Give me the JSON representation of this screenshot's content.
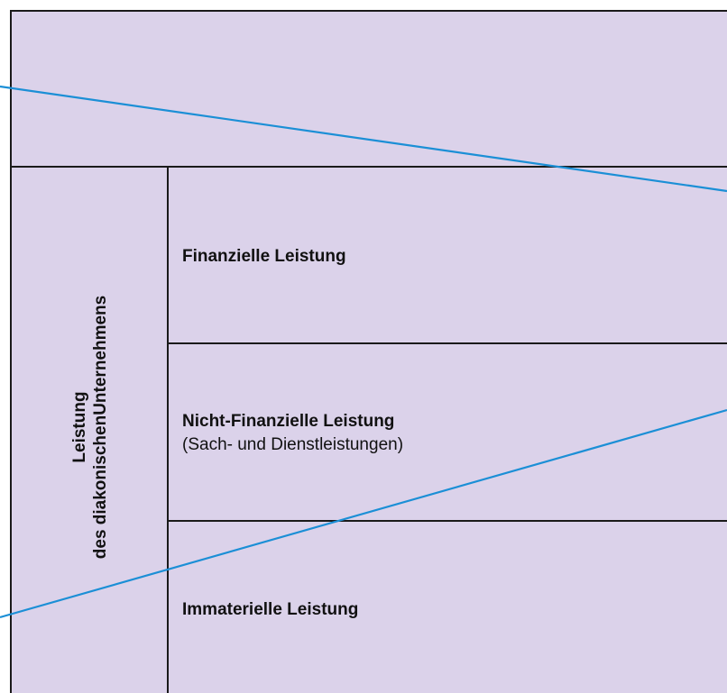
{
  "side_label": {
    "line1": "Leistung",
    "line2": "des diakonischenUnternehmens"
  },
  "rows": [
    {
      "title": "Finanzielle Leistung",
      "subtitle": ""
    },
    {
      "title": "Nicht-Finanzielle Leistung",
      "subtitle": "(Sach- und Dienstleistungen)"
    },
    {
      "title": "Immaterielle Leistung",
      "subtitle": ""
    }
  ],
  "colors": {
    "fill": "#dbd2ea",
    "lines": "#1a1a1a",
    "accent_lines": "#1b8fd6"
  }
}
